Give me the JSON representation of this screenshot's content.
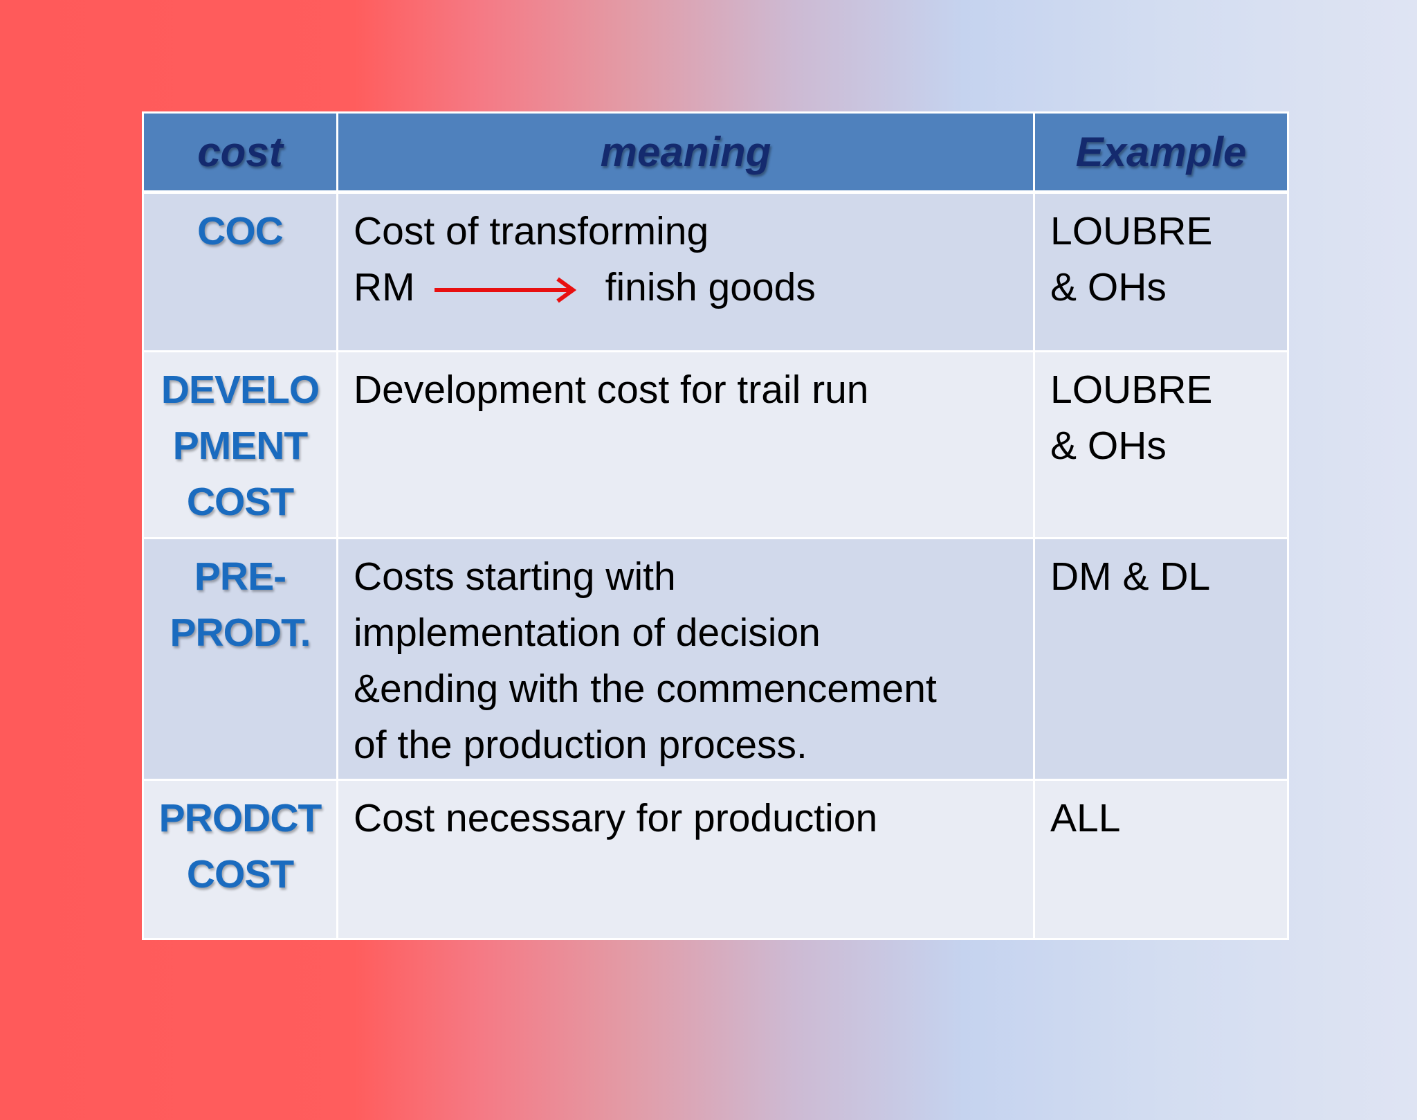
{
  "table": {
    "header": [
      "cost",
      "meaning",
      "Example"
    ],
    "rows": [
      {
        "cost": [
          "COC"
        ],
        "meaning": [
          "Cost of transforming",
          "RM",
          "finish goods"
        ],
        "example": [
          "LOUBRE",
          "& OHs"
        ]
      },
      {
        "cost": [
          "DEVELO",
          "PMENT",
          "COST"
        ],
        "meaning": [
          "Development cost for trail run"
        ],
        "example": [
          "LOUBRE",
          "& OHs"
        ]
      },
      {
        "cost": [
          "PRE-",
          "PRODT."
        ],
        "meaning": [
          "Costs starting with",
          "implementation of decision",
          "&ending with the commencement",
          "of the production process."
        ],
        "example": [
          "DM & DL"
        ]
      },
      {
        "cost": [
          "PRODCT",
          "COST"
        ],
        "meaning": [
          "Cost necessary for production"
        ],
        "example": [
          "ALL"
        ]
      }
    ]
  }
}
